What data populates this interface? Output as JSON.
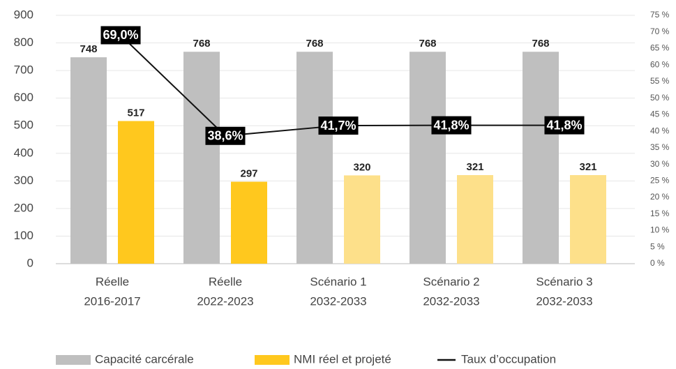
{
  "chart_data": {
    "type": "bar_line",
    "categories": [
      [
        "Réelle",
        "2016-2017"
      ],
      [
        "Réelle",
        "2022-2023"
      ],
      [
        "Scénario 1",
        "2032-2033"
      ],
      [
        "Scénario 2",
        "2032-2033"
      ],
      [
        "Scénario 3",
        "2032-2033"
      ]
    ],
    "series": [
      {
        "name": "Capacité carcérale",
        "color": "#bfbfbf",
        "values": [
          748,
          768,
          768,
          768,
          768
        ]
      },
      {
        "name": "NMI réel et projeté",
        "color": "#ffc81e",
        "colors": [
          "#ffc81e",
          "#ffc81e",
          "#fde08a",
          "#fde08a",
          "#fde08a"
        ],
        "values": [
          517,
          297,
          320,
          321,
          321
        ]
      },
      {
        "name": "Taux d’occupation",
        "color": "#111111",
        "axis": "y2",
        "values": [
          69.0,
          38.6,
          41.7,
          41.8,
          41.8
        ],
        "value_labels": [
          "69,0%",
          "38,6%",
          "41,7%",
          "41,8%",
          "41,8%"
        ]
      }
    ],
    "ylim": [
      0,
      900
    ],
    "yticks": [
      0,
      100,
      200,
      300,
      400,
      500,
      600,
      700,
      800,
      900
    ],
    "y2lim": [
      0,
      75
    ],
    "y2ticks": [
      {
        "value": 0,
        "label": "0 %"
      },
      {
        "value": 5,
        "label": "5 %"
      },
      {
        "value": 10,
        "label": "10 %"
      },
      {
        "value": 15,
        "label": "15 %"
      },
      {
        "value": 20,
        "label": "20 %"
      },
      {
        "value": 25,
        "label": "25 %"
      },
      {
        "value": 30,
        "label": "30 %"
      },
      {
        "value": 35,
        "label": "35 %"
      },
      {
        "value": 40,
        "label": "40 %"
      },
      {
        "value": 45,
        "label": "45 %"
      },
      {
        "value": 50,
        "label": "50 %"
      },
      {
        "value": 55,
        "label": "55 %"
      },
      {
        "value": 60,
        "label": "60 %"
      },
      {
        "value": 65,
        "label": "65 %"
      },
      {
        "value": 70,
        "label": "70 %"
      },
      {
        "value": 75,
        "label": "75 %"
      }
    ],
    "grid": true
  }
}
